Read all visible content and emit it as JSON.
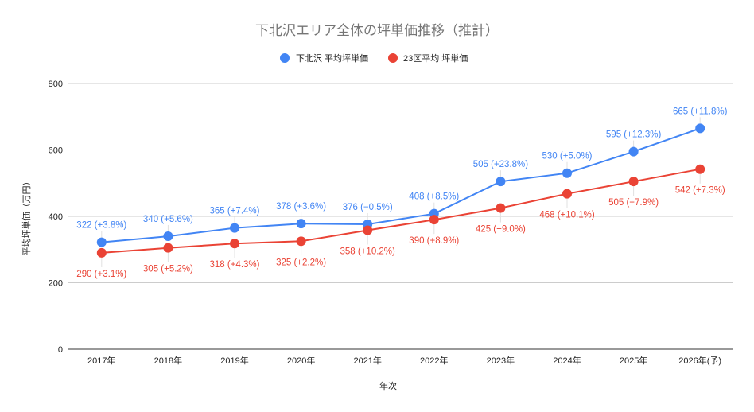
{
  "chart_data": {
    "type": "line",
    "title": "下北沢エリア全体の坪単価推移（推計）",
    "xlabel": "年次",
    "ylabel": "平均坪単価（万円）",
    "ylim": [
      0,
      800
    ],
    "yticks": [
      "0",
      "200",
      "400",
      "600",
      "800"
    ],
    "grid": true,
    "legend_position": "top",
    "categories": [
      "2017年",
      "2018年",
      "2019年",
      "2020年",
      "2021年",
      "2022年",
      "2023年",
      "2024年",
      "2025年",
      "2026年(予)"
    ],
    "series": [
      {
        "name": "下北沢 平均坪単価",
        "color": "#4285f4",
        "values": [
          322,
          340,
          365,
          378,
          376,
          408,
          505,
          530,
          595,
          665
        ],
        "labels": [
          "322 (+3.8%)",
          "340 (+5.6%)",
          "365 (+7.4%)",
          "378 (+3.6%)",
          "376 (−0.5%)",
          "408 (+8.5%)",
          "505 (+23.8%)",
          "530 (+5.0%)",
          "595 (+12.3%)",
          "665 (+11.8%)"
        ],
        "label_position": "above"
      },
      {
        "name": "23区平均 坪単価",
        "color": "#ea4335",
        "values": [
          290,
          305,
          318,
          325,
          358,
          390,
          425,
          468,
          505,
          542
        ],
        "labels": [
          "290 (+3.1%)",
          "305 (+5.2%)",
          "318 (+4.3%)",
          "325 (+2.2%)",
          "358 (+10.2%)",
          "390 (+8.9%)",
          "425 (+9.0%)",
          "468 (+10.1%)",
          "505 (+7.9%)",
          "542 (+7.3%)"
        ],
        "label_position": "below"
      }
    ]
  }
}
